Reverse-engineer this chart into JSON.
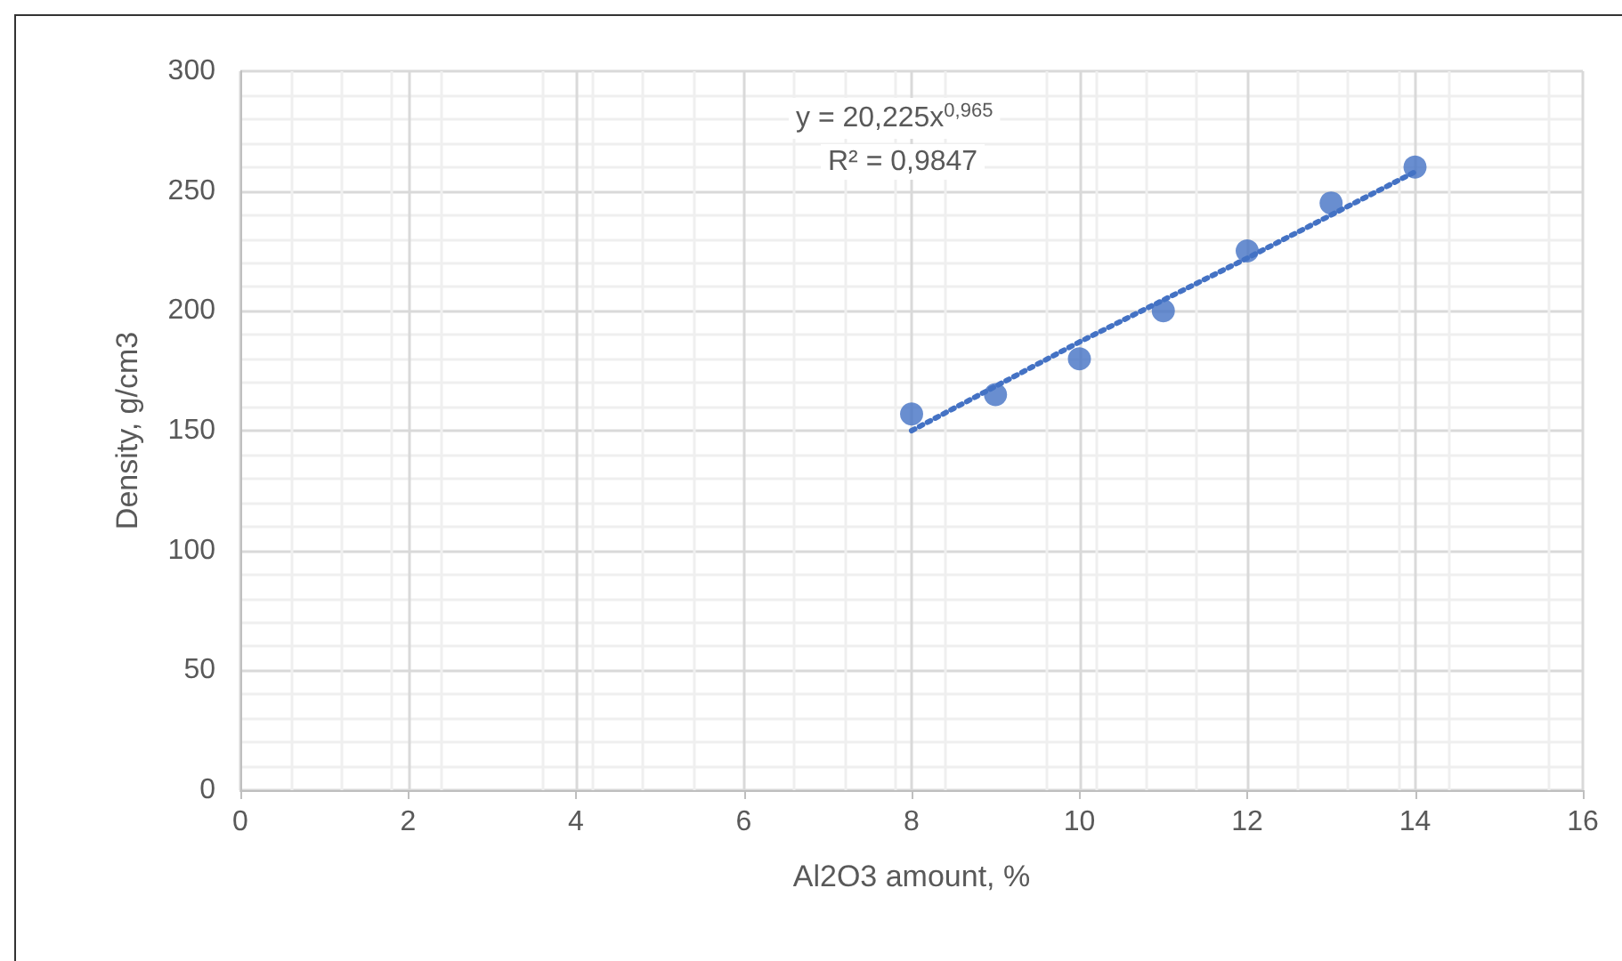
{
  "chart_data": {
    "type": "scatter",
    "xlabel": "Al2O3 amount, %",
    "ylabel": "Density, g/cm3",
    "xlim": [
      0,
      16
    ],
    "xticks": [
      0,
      2,
      4,
      6,
      8,
      10,
      12,
      14,
      16
    ],
    "ylim": [
      0,
      300
    ],
    "yticks": [
      0,
      50,
      100,
      150,
      200,
      250,
      300
    ],
    "grid": true,
    "marker": "circle",
    "annotations": [
      "y = 20,225x$^{0,965}$",
      "R² = 0,9847"
    ],
    "series": [
      {
        "color": "#4472c4",
        "x": [
          8,
          9,
          10,
          11,
          12,
          13,
          14
        ],
        "values": [
          157,
          165,
          180,
          200,
          225,
          245,
          260
        ]
      },
      {
        "type": "line",
        "color": "#4472c4",
        "line_style": "dotted",
        "marker": "none",
        "x": [
          8,
          10,
          12,
          14
        ],
        "values": [
          150,
          187,
          222,
          258
        ]
      }
    ]
  }
}
